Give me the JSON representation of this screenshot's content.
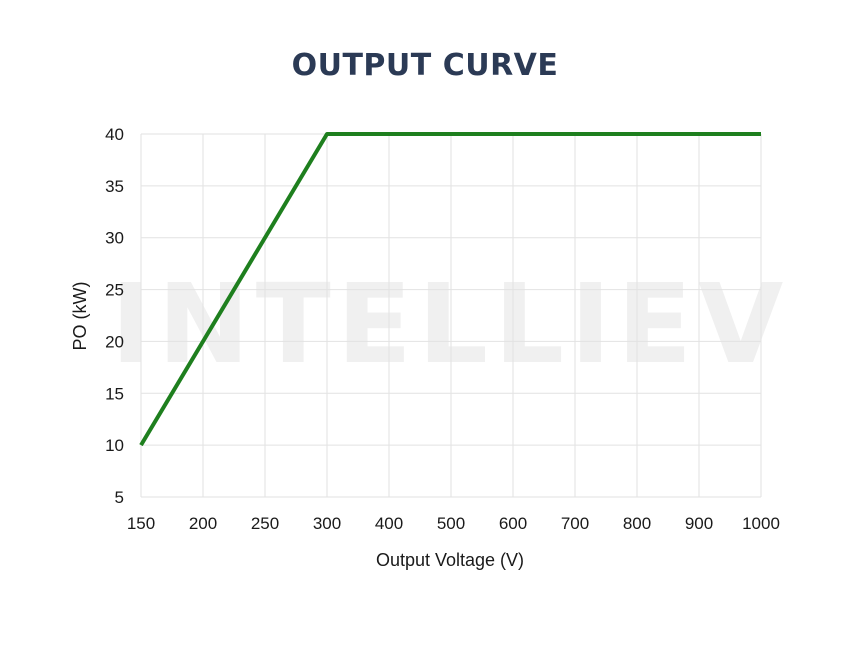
{
  "chart_data": {
    "type": "line",
    "title": "OUTPUT CURVE",
    "xlabel": "Output Voltage (V)",
    "ylabel": "PO (kW)",
    "x_categories": [
      "150",
      "200",
      "250",
      "300",
      "400",
      "500",
      "600",
      "700",
      "800",
      "900",
      "1000"
    ],
    "y_ticks": [
      "5",
      "10",
      "15",
      "20",
      "25",
      "30",
      "35",
      "40"
    ],
    "ylim": [
      5,
      40
    ],
    "grid": true,
    "legend": "none",
    "series": [
      {
        "color": "#1e7f1e",
        "points": [
          {
            "x": 150,
            "y": 10
          },
          {
            "x": 300,
            "y": 40
          },
          {
            "x": 1000,
            "y": 40
          }
        ]
      }
    ],
    "watermark": "INTELLIEV"
  },
  "colors": {
    "title": "#2b3a55",
    "line": "#1e7f1e",
    "grid": "#e2e2e2"
  }
}
